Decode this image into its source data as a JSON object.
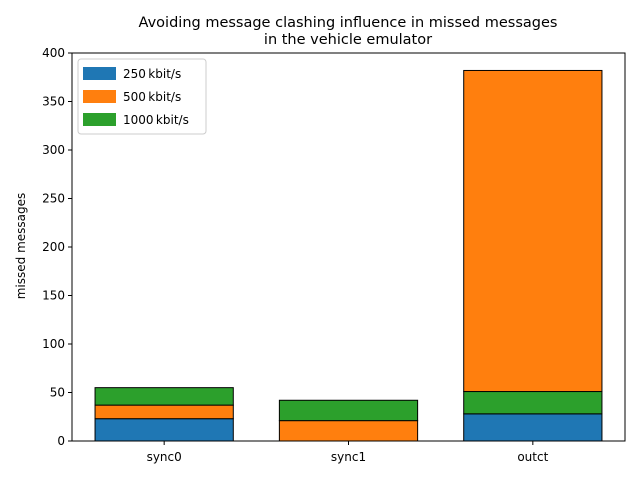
{
  "chart_data": {
    "type": "bar",
    "stacked": true,
    "title": "Avoiding message clashing influence in missed messages\nin the vehicle emulator",
    "xlabel": "",
    "ylabel": "missed messages",
    "categories": [
      "sync0",
      "sync1",
      "outct"
    ],
    "ylim": [
      0,
      400
    ],
    "yticks": [
      0,
      50,
      100,
      150,
      200,
      250,
      300,
      350,
      400
    ],
    "grid": false,
    "legend_placement": "top-left",
    "series": [
      {
        "name": "250 kbit/s",
        "color": "#1f77b4",
        "values": [
          23,
          0,
          28
        ]
      },
      {
        "name": "500 kbit/s",
        "color": "#ff7f0e",
        "values": [
          14,
          21,
          331
        ]
      },
      {
        "name": "1000 kbit/s",
        "color": "#2ca02c",
        "values": [
          18,
          21,
          23
        ]
      }
    ],
    "stack_order_bottom_to_top": [
      [
        "250 kbit/s",
        "500 kbit/s",
        "1000 kbit/s"
      ],
      [
        "250 kbit/s",
        "500 kbit/s",
        "1000 kbit/s"
      ],
      [
        "250 kbit/s",
        "1000 kbit/s",
        "500 kbit/s"
      ]
    ]
  }
}
